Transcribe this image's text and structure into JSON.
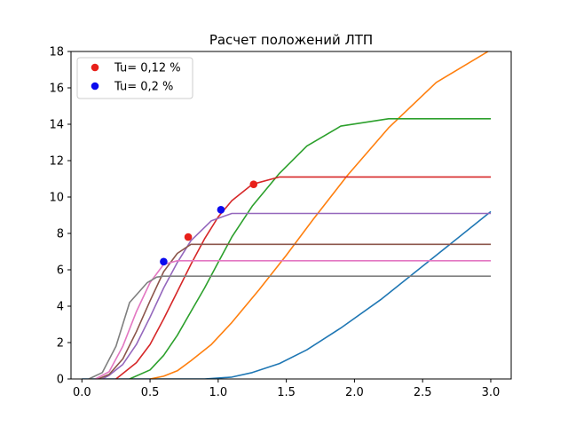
{
  "chart_data": {
    "type": "line",
    "title": "Расчет положений ЛТП",
    "xlabel": "",
    "ylabel": "",
    "xlim": [
      -0.08,
      3.15
    ],
    "ylim": [
      0,
      18
    ],
    "x_ticks": [
      "0.0",
      "0.5",
      "1.0",
      "1.5",
      "2.0",
      "2.5",
      "3.0"
    ],
    "x_tick_values": [
      0,
      0.5,
      1.0,
      1.5,
      2.0,
      2.5,
      3.0
    ],
    "y_ticks": [
      "0",
      "2",
      "4",
      "6",
      "8",
      "10",
      "12",
      "14",
      "16",
      "18"
    ],
    "y_tick_values": [
      0,
      2,
      4,
      6,
      8,
      10,
      12,
      14,
      16,
      18
    ],
    "grid": false,
    "legend_position": "top-left",
    "series": [
      {
        "color": "#1f77b4",
        "x": [
          0.0,
          0.5,
          0.9,
          1.1,
          1.25,
          1.45,
          1.65,
          1.9,
          2.2,
          2.55,
          3.0
        ],
        "y": [
          0,
          0,
          0,
          0.1,
          0.35,
          0.85,
          1.6,
          2.8,
          4.4,
          6.5,
          9.2
        ]
      },
      {
        "color": "#ff7f0e",
        "x": [
          0.5,
          0.6,
          0.7,
          0.8,
          0.95,
          1.1,
          1.3,
          1.5,
          1.7,
          1.95,
          2.25,
          2.6,
          2.98
        ],
        "y": [
          0,
          0.15,
          0.45,
          1.0,
          1.9,
          3.1,
          4.9,
          6.8,
          8.8,
          11.2,
          13.8,
          16.3,
          18.0
        ]
      },
      {
        "color": "#2ca02c",
        "x": [
          0.35,
          0.5,
          0.6,
          0.7,
          0.8,
          0.9,
          1.0,
          1.1,
          1.25,
          1.45,
          1.65,
          1.9,
          2.25,
          3.0
        ],
        "y": [
          0,
          0.5,
          1.3,
          2.4,
          3.7,
          5.0,
          6.4,
          7.8,
          9.5,
          11.3,
          12.8,
          13.9,
          14.3,
          14.3
        ]
      },
      {
        "color": "#d62728",
        "x": [
          0.25,
          0.3,
          0.4,
          0.5,
          0.6,
          0.7,
          0.8,
          0.9,
          1.0,
          1.1,
          1.25,
          1.45,
          3.0
        ],
        "y": [
          0,
          0.3,
          0.9,
          1.9,
          3.3,
          4.8,
          6.3,
          7.7,
          8.9,
          9.8,
          10.7,
          11.1,
          11.1
        ]
      },
      {
        "color": "#9467bd",
        "x": [
          0.15,
          0.2,
          0.3,
          0.4,
          0.5,
          0.6,
          0.7,
          0.8,
          0.95,
          1.1,
          1.3,
          3.0
        ],
        "y": [
          0,
          0.2,
          0.8,
          1.9,
          3.4,
          5.0,
          6.4,
          7.6,
          8.7,
          9.1,
          9.1,
          9.1
        ]
      },
      {
        "color": "#8c564b",
        "x": [
          0.12,
          0.2,
          0.3,
          0.4,
          0.5,
          0.6,
          0.7,
          0.8,
          3.0
        ],
        "y": [
          0,
          0.25,
          1.1,
          2.6,
          4.3,
          5.9,
          6.9,
          7.4,
          7.4
        ]
      },
      {
        "color": "#e377c2",
        "x": [
          0.1,
          0.2,
          0.3,
          0.4,
          0.5,
          0.6,
          0.7,
          3.0
        ],
        "y": [
          0,
          0.4,
          1.8,
          3.7,
          5.3,
          6.3,
          6.5,
          6.5
        ]
      },
      {
        "color": "#7f7f7f",
        "x": [
          0.05,
          0.15,
          0.25,
          0.35,
          0.48,
          0.55,
          0.6,
          3.0
        ],
        "y": [
          0,
          0.35,
          1.8,
          4.2,
          5.3,
          5.6,
          5.65,
          5.65
        ]
      }
    ],
    "markers": [
      {
        "name": "Tu= 0,12 %",
        "color": "#e8201a",
        "points": [
          [
            0.78,
            7.8
          ],
          [
            1.26,
            10.7
          ]
        ]
      },
      {
        "name": "Tu= 0,2 %",
        "color": "#0a0aee",
        "points": [
          [
            0.6,
            6.45
          ],
          [
            1.02,
            9.3
          ]
        ]
      }
    ]
  }
}
